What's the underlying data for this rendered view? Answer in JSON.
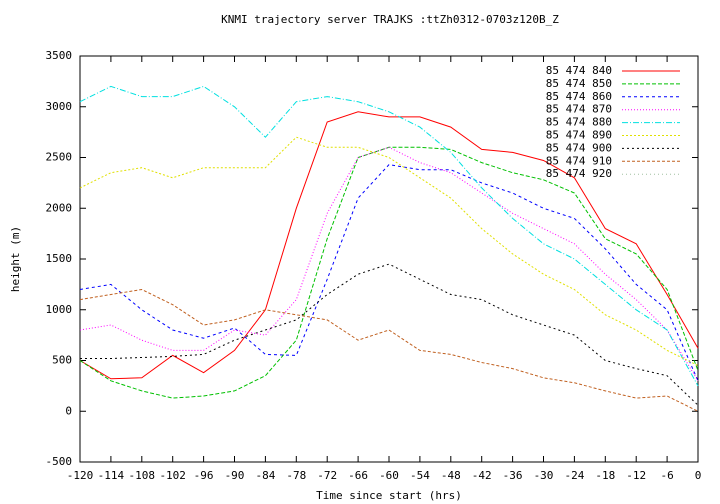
{
  "chart_data": {
    "type": "line",
    "title": "KNMI trajectory server TRAJKS :ttZh0312-0703z120B_Z",
    "x_label": "Time since start (hrs)",
    "y_label": "height (m)",
    "x": [
      -120,
      -114,
      -108,
      -102,
      -96,
      -90,
      -84,
      -78,
      -72,
      -66,
      -60,
      -54,
      -48,
      -42,
      -36,
      -30,
      -24,
      -18,
      -12,
      -6,
      0
    ],
    "xlim": [
      -120,
      0
    ],
    "xticks": [
      -120,
      -114,
      -108,
      -102,
      -96,
      -90,
      -84,
      -78,
      -72,
      -66,
      -60,
      -54,
      -48,
      -42,
      -36,
      -30,
      -24,
      -18,
      -12,
      -6,
      0
    ],
    "ylim": [
      -500,
      3500
    ],
    "yticks": [
      -500,
      0,
      500,
      1000,
      1500,
      2000,
      2500,
      3000,
      3500
    ],
    "legend": "upper right",
    "series": [
      {
        "name": "85 474 840",
        "color": "#ff0000",
        "dash": "",
        "values": [
          500,
          320,
          330,
          550,
          380,
          600,
          1000,
          2000,
          2850,
          2950,
          2900,
          2900,
          2800,
          2580,
          2550,
          2470,
          2300,
          1800,
          1650,
          1150,
          620
        ]
      },
      {
        "name": "85 474 850",
        "color": "#00c000",
        "dash": "4 2",
        "values": [
          500,
          300,
          200,
          130,
          150,
          200,
          350,
          700,
          1700,
          2500,
          2600,
          2600,
          2580,
          2450,
          2350,
          2280,
          2150,
          1700,
          1550,
          1200,
          400
        ]
      },
      {
        "name": "85 474 860",
        "color": "#0000ff",
        "dash": "3 3",
        "values": [
          1200,
          1250,
          1000,
          800,
          720,
          820,
          560,
          550,
          1300,
          2100,
          2430,
          2380,
          2380,
          2250,
          2150,
          2000,
          1900,
          1600,
          1250,
          1000,
          300
        ]
      },
      {
        "name": "85 474 870",
        "color": "#ff00ff",
        "dash": "1 2",
        "values": [
          800,
          850,
          700,
          600,
          600,
          800,
          750,
          1100,
          1950,
          2500,
          2600,
          2450,
          2350,
          2150,
          1950,
          1800,
          1650,
          1350,
          1100,
          800,
          300
        ]
      },
      {
        "name": "85 474 880",
        "color": "#00e0e0",
        "dash": "6 2 1 2",
        "values": [
          3050,
          3200,
          3100,
          3100,
          3200,
          3000,
          2700,
          3050,
          3100,
          3050,
          2950,
          2800,
          2550,
          2200,
          1900,
          1650,
          1500,
          1250,
          1000,
          800,
          250
        ]
      },
      {
        "name": "85 474 890",
        "color": "#e0e000",
        "dash": "2 2",
        "values": [
          2200,
          2350,
          2400,
          2300,
          2400,
          2400,
          2400,
          2700,
          2600,
          2600,
          2500,
          2300,
          2100,
          1800,
          1550,
          1350,
          1200,
          950,
          800,
          600,
          450
        ]
      },
      {
        "name": "85 474 900",
        "color": "#000000",
        "dash": "2 3",
        "values": [
          520,
          520,
          530,
          540,
          560,
          700,
          800,
          900,
          1150,
          1350,
          1450,
          1300,
          1150,
          1100,
          950,
          850,
          750,
          500,
          420,
          350,
          60
        ]
      },
      {
        "name": "85 474 910",
        "color": "#c06020",
        "dash": "3 2",
        "values": [
          1100,
          1150,
          1200,
          1050,
          850,
          900,
          1000,
          950,
          900,
          700,
          800,
          600,
          560,
          480,
          420,
          330,
          280,
          200,
          130,
          150,
          0
        ]
      },
      {
        "name": "85 474 920",
        "color": "#a0c0a0",
        "dash": "1 3",
        "values": [
          null,
          null,
          null,
          null,
          null,
          null,
          null,
          null,
          null,
          null,
          null,
          null,
          null,
          null,
          null,
          null,
          null,
          null,
          null,
          null,
          null
        ]
      }
    ]
  }
}
